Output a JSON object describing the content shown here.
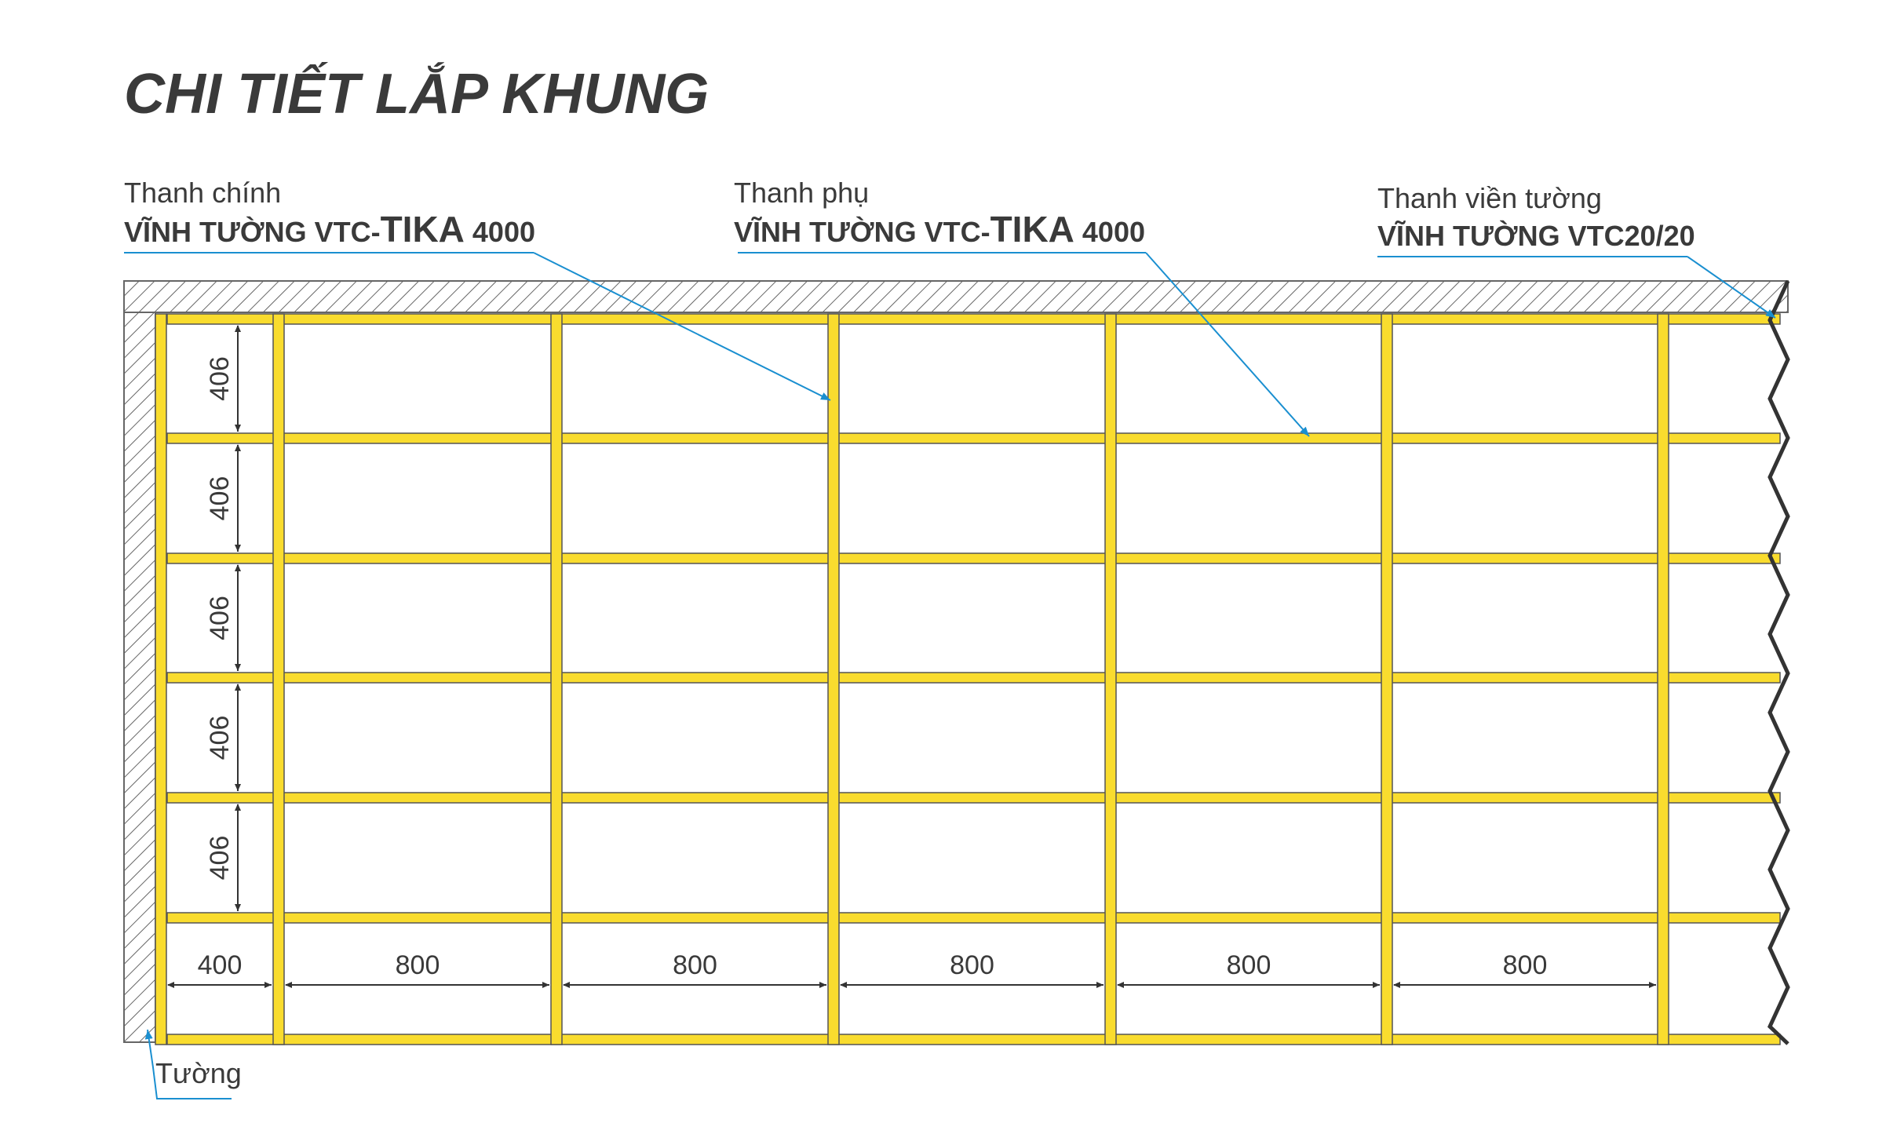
{
  "title": "CHI TIẾT LẮP KHUNG",
  "labels": {
    "main_bar": {
      "line1": "Thanh chính",
      "line2_a": "VĨNH TƯỜNG VTC-",
      "line2_b": "TIKA",
      "line2_c": " 4000"
    },
    "sub_bar": {
      "line1": "Thanh phụ",
      "line2_a": "VĨNH TƯỜNG VTC-",
      "line2_b": "TIKA",
      "line2_c": " 4000"
    },
    "edge_bar": {
      "line1": "Thanh viền tường",
      "line2": "VĨNH TƯỜNG VTC20/20"
    },
    "wall": "Tường"
  },
  "dimensions": {
    "vertical": [
      "406",
      "406",
      "406",
      "406",
      "406"
    ],
    "horizontal": [
      "400",
      "800",
      "800",
      "800",
      "800",
      "800"
    ]
  },
  "colors": {
    "bar_fill": "#f9dc2e",
    "bar_edge": "#555555",
    "text": "#3a3a3a",
    "leader": "#1a8fd0",
    "hatch": "#666666"
  },
  "icons": [
    "hatch-wall-icon",
    "break-line-icon",
    "dimension-arrow-icon"
  ]
}
